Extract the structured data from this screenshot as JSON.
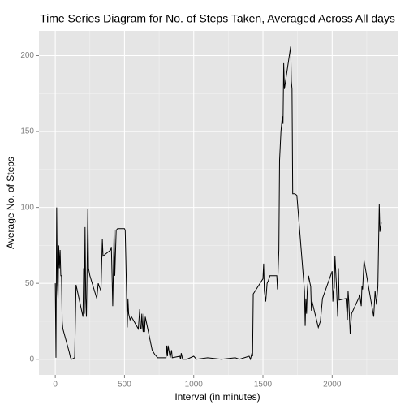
{
  "chart_data": {
    "type": "line",
    "title": "Time Series  Diagram for No. of Steps Taken, Averaged Across All days",
    "x_label": "Interval (in minutes)",
    "y_label": "Average No. of Steps",
    "color": "#000000",
    "grid": true,
    "xlim": [
      -118,
      2473
    ],
    "ylim": [
      -10.3,
      216.3
    ],
    "xticks": [
      0,
      500,
      1000,
      1500,
      2000
    ],
    "yticks": [
      0,
      50,
      100,
      150,
      200
    ],
    "x_minor_ticks": [
      250,
      750,
      1250,
      1750,
      2250
    ],
    "y_minor_ticks": [
      25,
      75,
      125,
      175
    ],
    "x": [
      0,
      5,
      10,
      15,
      20,
      25,
      30,
      35,
      40,
      45,
      50,
      55,
      100,
      110,
      120,
      130,
      140,
      150,
      200,
      205,
      210,
      215,
      220,
      225,
      230,
      235,
      240,
      250,
      300,
      310,
      330,
      340,
      345,
      400,
      405,
      410,
      415,
      420,
      425,
      430,
      440,
      450,
      500,
      505,
      510,
      520,
      525,
      530,
      540,
      550,
      600,
      610,
      615,
      620,
      625,
      630,
      635,
      640,
      645,
      650,
      700,
      720,
      740,
      800,
      805,
      810,
      815,
      830,
      840,
      845,
      900,
      905,
      910,
      920,
      950,
      1000,
      1020,
      1100,
      1200,
      1300,
      1330,
      1400,
      1410,
      1420,
      1425,
      1430,
      1500,
      1505,
      1510,
      1520,
      1530,
      1540,
      1550,
      1600,
      1605,
      1610,
      1615,
      1620,
      1630,
      1640,
      1645,
      1650,
      1655,
      1700,
      1705,
      1710,
      1715,
      1730,
      1745,
      1800,
      1805,
      1810,
      1815,
      1820,
      1830,
      1840,
      1845,
      1850,
      1855,
      1900,
      1915,
      1930,
      2000,
      2005,
      2010,
      2015,
      2020,
      2030,
      2040,
      2045,
      2050,
      2100,
      2110,
      2115,
      2120,
      2130,
      2140,
      2200,
      2210,
      2215,
      2220,
      2230,
      2300,
      2310,
      2320,
      2330,
      2340,
      2345,
      2355
    ],
    "values": [
      50,
      1,
      100,
      50,
      40,
      75,
      60,
      72,
      55,
      55,
      25,
      20,
      5,
      1,
      0,
      0.5,
      1,
      49,
      28,
      60,
      30,
      87,
      40,
      28,
      60,
      99,
      60,
      55,
      40,
      50,
      45,
      79,
      68,
      72,
      74,
      56,
      35,
      60,
      85,
      55,
      85,
      86,
      86,
      85,
      65,
      21,
      40,
      30,
      26,
      28,
      20,
      33,
      20,
      20,
      30,
      22,
      18,
      30,
      18,
      28,
      6,
      3,
      1,
      1,
      9,
      2,
      9,
      1,
      6,
      1,
      2,
      0,
      4,
      0,
      0,
      2,
      0,
      1,
      0,
      1,
      0,
      2,
      0,
      4,
      2,
      43,
      53,
      63,
      45,
      38,
      50,
      52,
      55,
      55,
      46,
      60,
      72,
      131,
      150,
      160,
      155,
      195,
      178,
      206,
      183,
      178,
      109,
      109,
      108,
      45,
      22,
      40,
      30,
      45,
      55,
      50,
      48,
      32,
      38,
      21,
      25,
      40,
      58,
      38,
      45,
      47,
      68,
      50,
      28,
      60,
      39,
      40,
      26,
      45,
      38,
      17,
      30,
      42,
      35,
      48,
      46,
      65,
      28,
      45,
      36,
      48,
      102,
      84,
      90
    ]
  }
}
